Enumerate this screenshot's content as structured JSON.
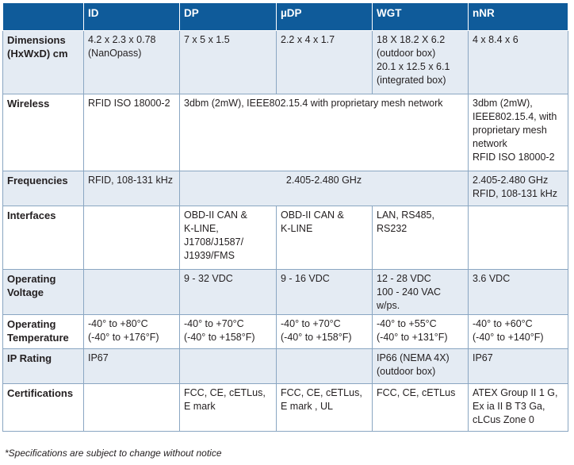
{
  "columns": [
    "",
    "ID",
    "DP",
    "µDP",
    "WGT",
    "nNR"
  ],
  "rows": {
    "dimensions": {
      "label": [
        "Dimensions",
        "(HxWxD) cm"
      ],
      "id": [
        "4.2 x 2.3 x 0.78",
        "(NanOpass)"
      ],
      "dp": "7 x 5 x 1.5",
      "udp": "2.2 x 4 x 1.7",
      "wgt": [
        "18 X 18.2 X 6.2",
        "(outdoor box)",
        "20.1 x 12.5 x 6.1",
        "(integrated box)"
      ],
      "nnr": "4 x 8.4 x 6"
    },
    "wireless": {
      "label": [
        "Wireless"
      ],
      "id": "RFID ISO 18000-2",
      "dp_udp_wgt": "3dbm (2mW), IEEE802.15.4 with proprietary mesh network",
      "nnr": [
        "3dbm (2mW),",
        "IEEE802.15.4, with",
        "proprietary mesh",
        "network",
        "RFID ISO 18000-2"
      ]
    },
    "frequencies": {
      "label": [
        "Frequencies"
      ],
      "id": "RFID, 108-131 kHz",
      "dp_udp_wgt": "2.405-2.480 GHz",
      "nnr": [
        "2.405-2.480 GHz",
        "RFID, 108-131 kHz"
      ]
    },
    "interfaces": {
      "label": [
        "Interfaces"
      ],
      "id": "",
      "dp": [
        "OBD-II CAN &",
        "K-LINE,",
        "J1708/J1587/",
        "J1939/FMS"
      ],
      "udp": [
        "OBD-II CAN &",
        "K-LINE"
      ],
      "wgt": [
        "LAN, RS485,",
        "RS232"
      ],
      "nnr": ""
    },
    "voltage": {
      "label": [
        "Operating",
        "Voltage"
      ],
      "id": "",
      "dp": "9 - 32 VDC",
      "udp": "9 - 16 VDC",
      "wgt": [
        "12 - 28 VDC",
        "100 - 240 VAC w/ps."
      ],
      "nnr": "3.6 VDC"
    },
    "temperature": {
      "label": [
        "Operating",
        "Temperature"
      ],
      "id": [
        "-40° to +80°C",
        "(-40° to +176°F)"
      ],
      "dp": [
        "-40° to +70°C",
        "(-40° to +158°F)"
      ],
      "udp": [
        "-40° to +70°C",
        "(-40° to +158°F)"
      ],
      "wgt": [
        "-40° to +55°C",
        "(-40° to +131°F)"
      ],
      "nnr": [
        "-40° to +60°C",
        "(-40° to +140°F)"
      ]
    },
    "ip_rating": {
      "label": [
        "IP Rating"
      ],
      "id": "IP67",
      "dp": "",
      "udp": "",
      "wgt": [
        "IP66 (NEMA 4X)",
        "(outdoor box)"
      ],
      "nnr": "IP67"
    },
    "certifications": {
      "label": [
        "Certifications"
      ],
      "id": "",
      "dp": [
        "FCC, CE, cETLus,",
        "E mark"
      ],
      "udp": [
        "FCC, CE, cETLus,",
        "E mark , UL"
      ],
      "wgt": "FCC, CE, cETLus",
      "nnr": [
        "ATEX Group II 1 G,",
        "Ex ia II B T3 Ga,",
        "cLCus Zone 0"
      ]
    }
  },
  "footnote": "*Specifications are subject to change without notice",
  "colors": {
    "header_bg": "#0f5b9a",
    "alt_row_bg": "#e4ebf3",
    "border": "#8aa6c2"
  }
}
